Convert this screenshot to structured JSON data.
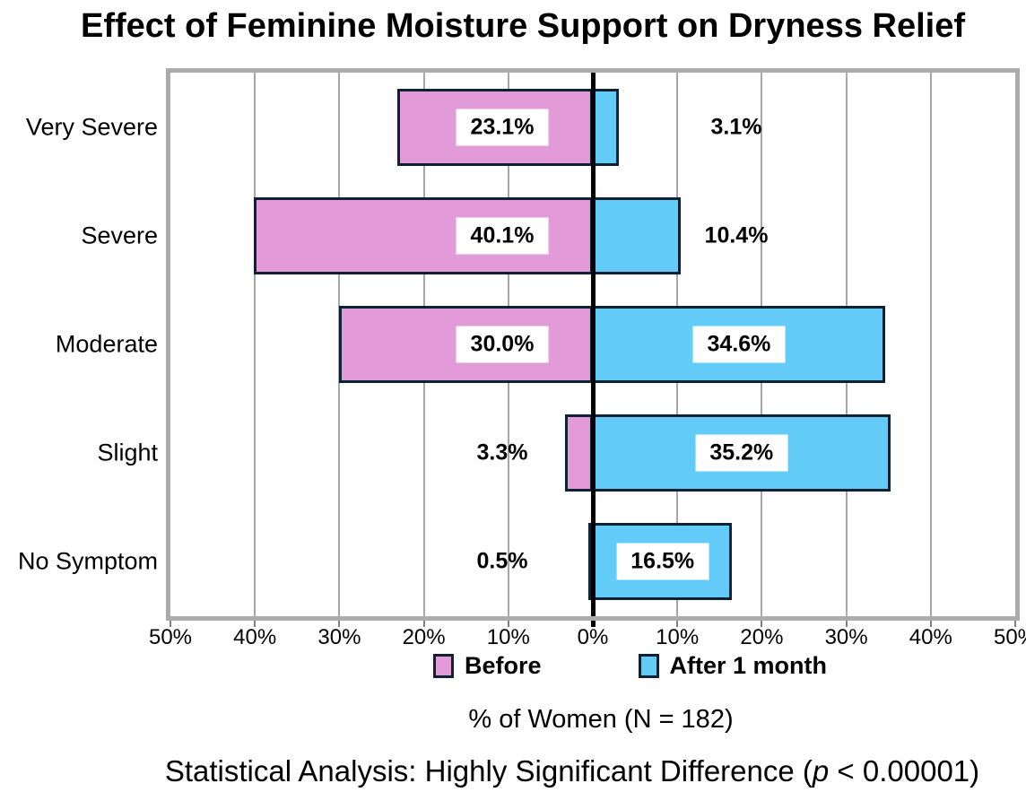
{
  "title": "Effect of Feminine Moisture Support on Dryness Relief",
  "chart_data": {
    "type": "bar",
    "variant": "diverging-horizontal",
    "title": "Effect of Feminine Moisture Support on Dryness Relief",
    "categories": [
      "Very Severe",
      "Severe",
      "Moderate",
      "Slight",
      "No Symptom"
    ],
    "series": [
      {
        "name": "Before",
        "side": "left",
        "color": "#E29AD9",
        "values": [
          23.1,
          40.1,
          30.0,
          3.3,
          0.5
        ]
      },
      {
        "name": "After 1 month",
        "side": "right",
        "color": "#63CBF8",
        "values": [
          3.1,
          10.4,
          34.6,
          35.2,
          16.5
        ]
      }
    ],
    "value_label_suffix": "%",
    "x_axis": {
      "min": -50,
      "max": 50,
      "tick_step": 10,
      "tick_labels": [
        "50%",
        "40%",
        "30%",
        "20%",
        "10%",
        "0%",
        "10%",
        "20%",
        "30%",
        "40%",
        "50%"
      ]
    },
    "xlabel": "% of Women (N = 182)",
    "gridlines": true,
    "legend_position": "bottom"
  },
  "legend": {
    "items": [
      {
        "label": "Before",
        "color": "#E29AD9"
      },
      {
        "label": "After 1 month",
        "color": "#63CBF8"
      }
    ]
  },
  "xlabel": "% of Women (N = 182)",
  "footnote": {
    "prefix": "Statistical Analysis: Highly Significant Difference (",
    "p_symbol": "p",
    "suffix": " < 0.00001)"
  },
  "colors": {
    "before": "#E29AD9",
    "after": "#63CBF8",
    "bar_border": "#0E2233",
    "gridline": "#A6A6A6",
    "zero_line": "#000000",
    "plot_border": "#ABABAB",
    "label_box": "#FFFFFF",
    "text": "#000000"
  }
}
